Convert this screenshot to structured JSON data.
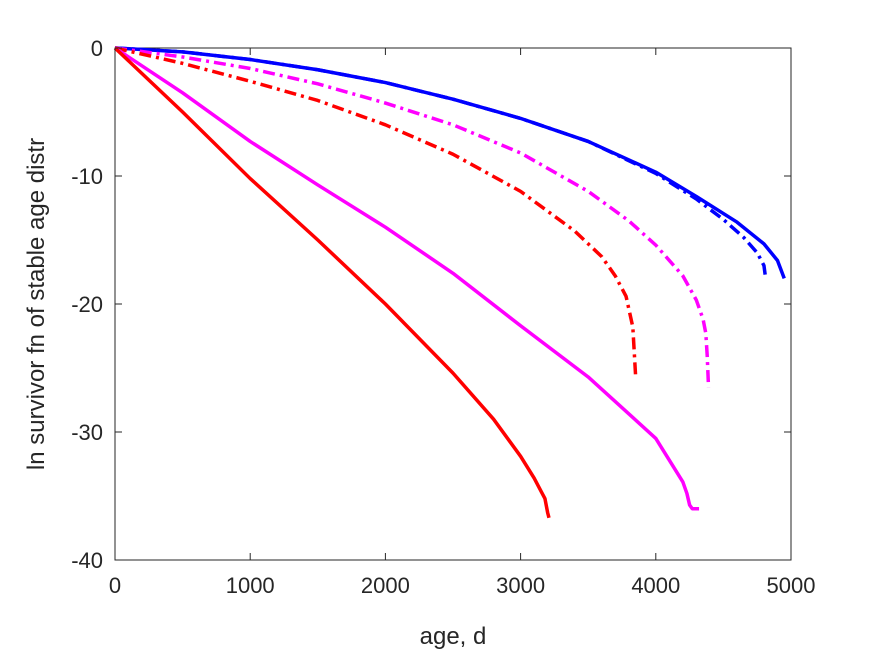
{
  "chart_data": {
    "type": "line",
    "title": "",
    "xlabel": "age, d",
    "ylabel": "ln survivor fn of stable age distr",
    "xlim": [
      0,
      5000
    ],
    "ylim": [
      -40,
      0
    ],
    "xticks": [
      0,
      1000,
      2000,
      3000,
      4000,
      5000
    ],
    "yticks": [
      0,
      -10,
      -20,
      -30,
      -40
    ],
    "xtick_labels": [
      "0",
      "1000",
      "2000",
      "3000",
      "4000",
      "5000"
    ],
    "ytick_labels": [
      "0",
      "-10",
      "-20",
      "-30",
      "-40"
    ],
    "grid": false,
    "legend": "none",
    "series": [
      {
        "color": "#0000ff",
        "dash": "solid",
        "x": [
          0,
          500,
          1000,
          1500,
          2000,
          2500,
          3000,
          3500,
          4000,
          4300,
          4600,
          4800,
          4900,
          4950
        ],
        "y": [
          0,
          -0.3,
          -0.9,
          -1.7,
          -2.7,
          -4.0,
          -5.5,
          -7.3,
          -9.7,
          -11.6,
          -13.6,
          -15.3,
          -16.6,
          -18.0
        ]
      },
      {
        "color": "#0000ff",
        "dash": "dashdot",
        "x": [
          0,
          500,
          1000,
          1500,
          2000,
          2500,
          3000,
          3500,
          4000,
          4300,
          4500,
          4650,
          4750,
          4800,
          4810
        ],
        "y": [
          0,
          -0.3,
          -0.9,
          -1.7,
          -2.7,
          -4.0,
          -5.5,
          -7.3,
          -9.8,
          -11.8,
          -13.4,
          -14.8,
          -16.0,
          -17.0,
          -17.8
        ]
      },
      {
        "color": "#ff00ff",
        "dash": "dashdot",
        "x": [
          0,
          500,
          1000,
          1500,
          2000,
          2500,
          3000,
          3500,
          3800,
          4000,
          4200,
          4300,
          4350,
          4370,
          4380,
          4390
        ],
        "y": [
          0,
          -0.7,
          -1.6,
          -2.8,
          -4.3,
          -6.0,
          -8.2,
          -11.2,
          -13.5,
          -15.4,
          -17.8,
          -19.7,
          -21.2,
          -22.3,
          -24.0,
          -26.5
        ]
      },
      {
        "color": "#ff0000",
        "dash": "dashdot",
        "x": [
          0,
          500,
          1000,
          1500,
          2000,
          2500,
          3000,
          3400,
          3600,
          3700,
          3780,
          3830,
          3850
        ],
        "y": [
          0,
          -1.2,
          -2.6,
          -4.1,
          -6.0,
          -8.3,
          -11.2,
          -14.3,
          -16.3,
          -17.8,
          -19.4,
          -21.8,
          -25.5
        ]
      },
      {
        "color": "#ff00ff",
        "dash": "solid",
        "x": [
          0,
          500,
          1000,
          1500,
          2000,
          2500,
          3000,
          3500,
          4000,
          4200,
          4230,
          4250,
          4270,
          4320
        ],
        "y": [
          0,
          -3.5,
          -7.3,
          -10.7,
          -14.0,
          -17.6,
          -21.7,
          -25.7,
          -30.5,
          -33.9,
          -34.8,
          -35.7,
          -36.0,
          -36.0
        ]
      },
      {
        "color": "#ff0000",
        "dash": "solid",
        "x": [
          0,
          500,
          1000,
          1500,
          2000,
          2500,
          2800,
          3000,
          3100,
          3150,
          3180,
          3200,
          3210
        ],
        "y": [
          0,
          -5.0,
          -10.2,
          -15.0,
          -20.0,
          -25.4,
          -29.0,
          -31.9,
          -33.6,
          -34.6,
          -35.2,
          -36.3,
          -36.7
        ]
      }
    ]
  }
}
